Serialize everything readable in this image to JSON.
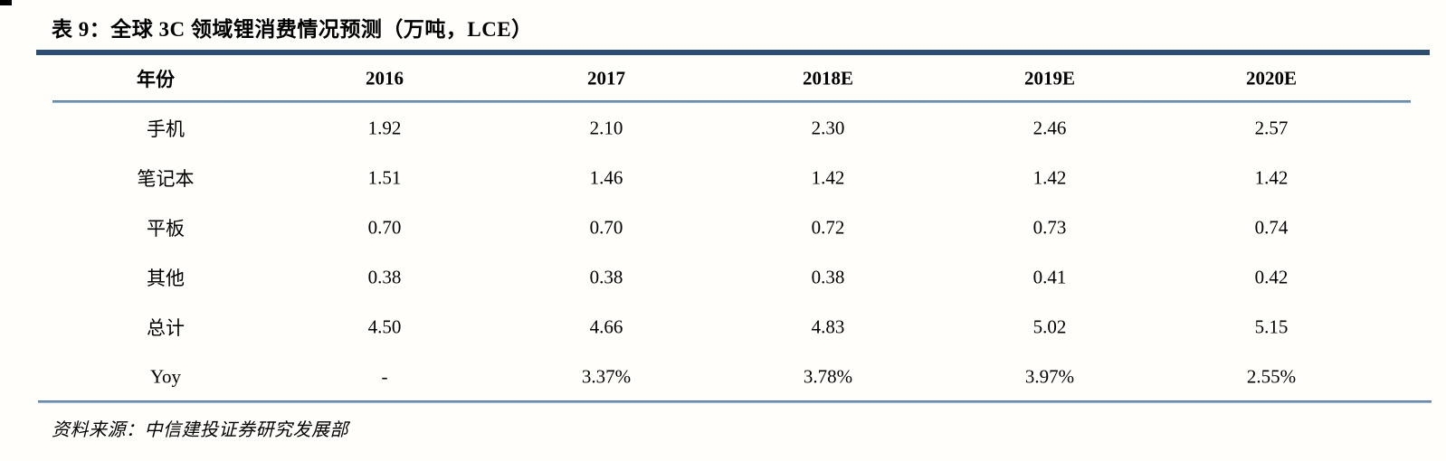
{
  "title": "表 9：全球 3C 领域锂消费情况预测（万吨，LCE）",
  "table": {
    "columns": [
      "年份",
      "2016",
      "2017",
      "2018E",
      "2019E",
      "2020E"
    ],
    "rows": [
      {
        "label": "手机",
        "values": [
          "1.92",
          "2.10",
          "2.30",
          "2.46",
          "2.57"
        ]
      },
      {
        "label": "笔记本",
        "values": [
          "1.51",
          "1.46",
          "1.42",
          "1.42",
          "1.42"
        ]
      },
      {
        "label": "平板",
        "values": [
          "0.70",
          "0.70",
          "0.72",
          "0.73",
          "0.74"
        ]
      },
      {
        "label": "其他",
        "values": [
          "0.38",
          "0.38",
          "0.38",
          "0.41",
          "0.42"
        ]
      },
      {
        "label": "总计",
        "values": [
          "4.50",
          "4.66",
          "4.83",
          "5.02",
          "5.15"
        ]
      },
      {
        "label": "Yoy",
        "values": [
          "-",
          "3.37%",
          "3.78%",
          "3.97%",
          "2.55%"
        ]
      }
    ]
  },
  "source": "资料来源：中信建投证券研究发展部",
  "colors": {
    "rule_thick": "#2d4d73",
    "rule_thin_top": "#46688c",
    "rule_thin_bottom": "#a7c3db",
    "text": "#000000",
    "background": "#fffefb"
  }
}
